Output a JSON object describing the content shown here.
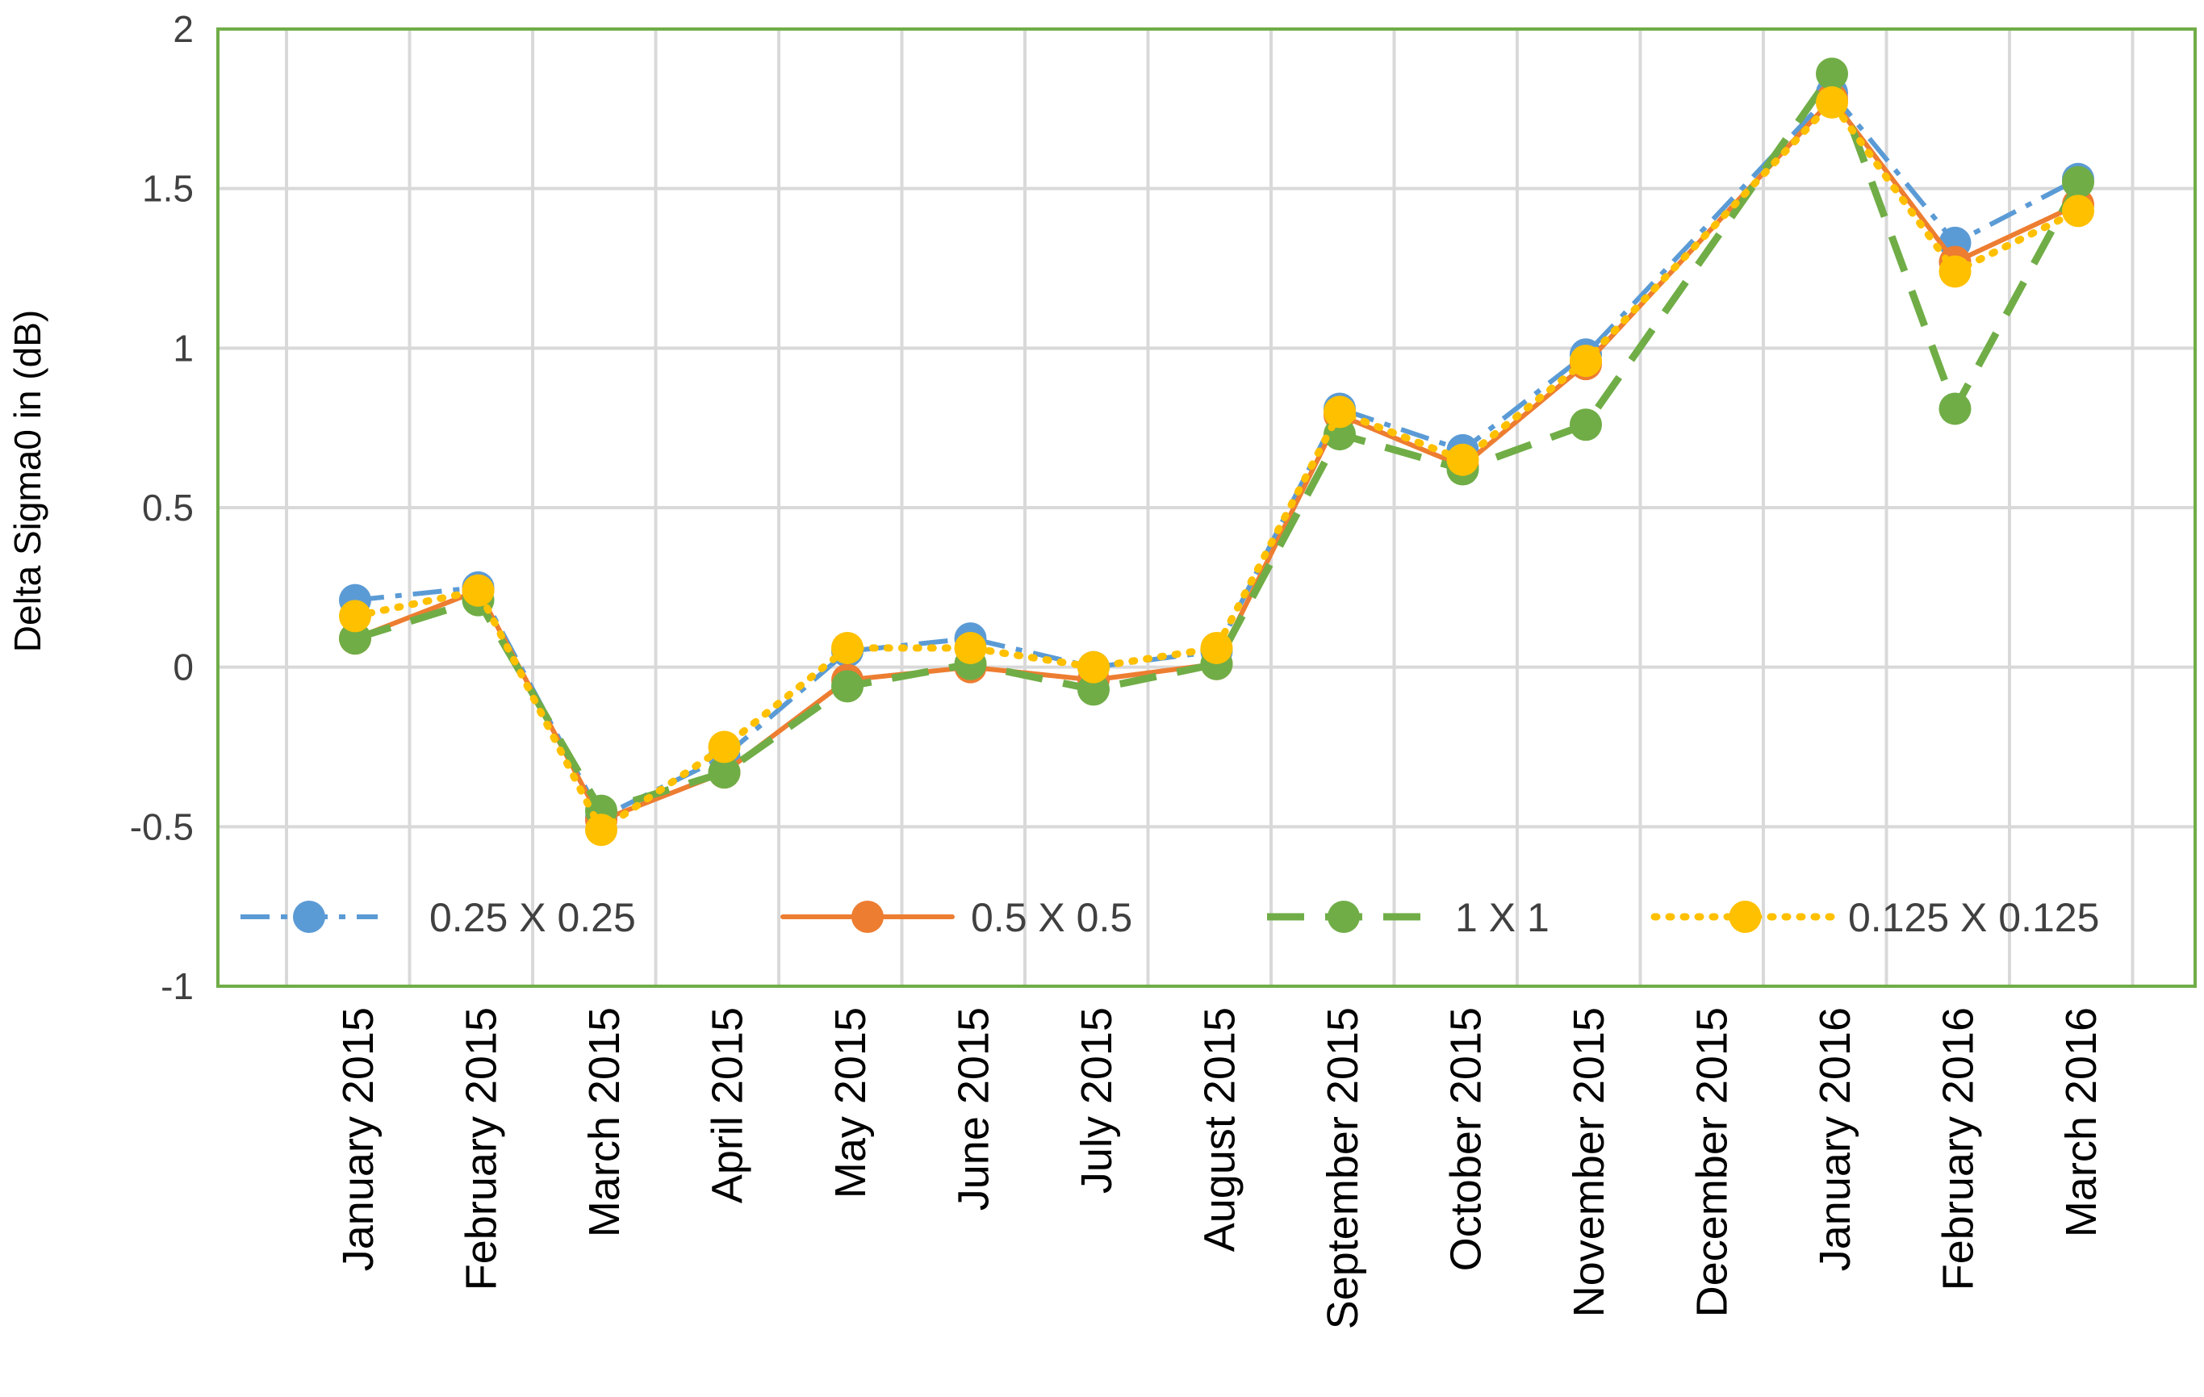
{
  "chart_data": {
    "type": "line",
    "title": "",
    "xlabel": "",
    "ylabel": "Delta Sigma0 in (dB)",
    "ylim": [
      -1,
      2
    ],
    "yticks": [
      -1,
      -0.5,
      0,
      0.5,
      1,
      1.5,
      2
    ],
    "ytick_labels": [
      "-1",
      "-0.5",
      "0",
      "0.5",
      "1",
      "1.5",
      "2"
    ],
    "grid": true,
    "legend_position": "bottom-inside",
    "categories": [
      "January  2015",
      "February 2015",
      "March 2015",
      "April 2015",
      "May 2015",
      "June 2015",
      "July 2015",
      "August 2015",
      "September 2015",
      "October 2015",
      "November 2015",
      "December 2015",
      "January 2016",
      "February 2016",
      "March 2016"
    ],
    "series": [
      {
        "name": "0.25 X 0.25",
        "color": "#5B9BD5",
        "dash": "dash-dot",
        "values": [
          0.21,
          0.25,
          -0.47,
          -0.28,
          0.05,
          0.09,
          0.0,
          0.05,
          0.81,
          0.68,
          0.98,
          null,
          1.8,
          1.33,
          1.53
        ]
      },
      {
        "name": "0.5 X 0.5",
        "color": "#ED7D31",
        "dash": "solid",
        "values": [
          0.09,
          0.24,
          -0.48,
          -0.33,
          -0.04,
          0.0,
          -0.04,
          0.01,
          0.79,
          0.63,
          0.95,
          null,
          1.78,
          1.27,
          1.45
        ]
      },
      {
        "name": "1 X 1",
        "color": "#70AD47",
        "dash": "long-dash",
        "values": [
          0.09,
          0.21,
          -0.45,
          -0.33,
          -0.06,
          0.01,
          -0.07,
          0.01,
          0.73,
          0.62,
          0.76,
          null,
          1.86,
          0.81,
          1.52
        ]
      },
      {
        "name": "0.125 X 0.125",
        "color": "#FFC000",
        "dash": "dotted",
        "values": [
          0.16,
          0.24,
          -0.51,
          -0.25,
          0.06,
          0.06,
          0.0,
          0.06,
          0.8,
          0.65,
          0.96,
          null,
          1.77,
          1.24,
          1.43
        ]
      }
    ],
    "plot_border_color": "#70AD47",
    "grid_color": "#D9D9D9"
  }
}
